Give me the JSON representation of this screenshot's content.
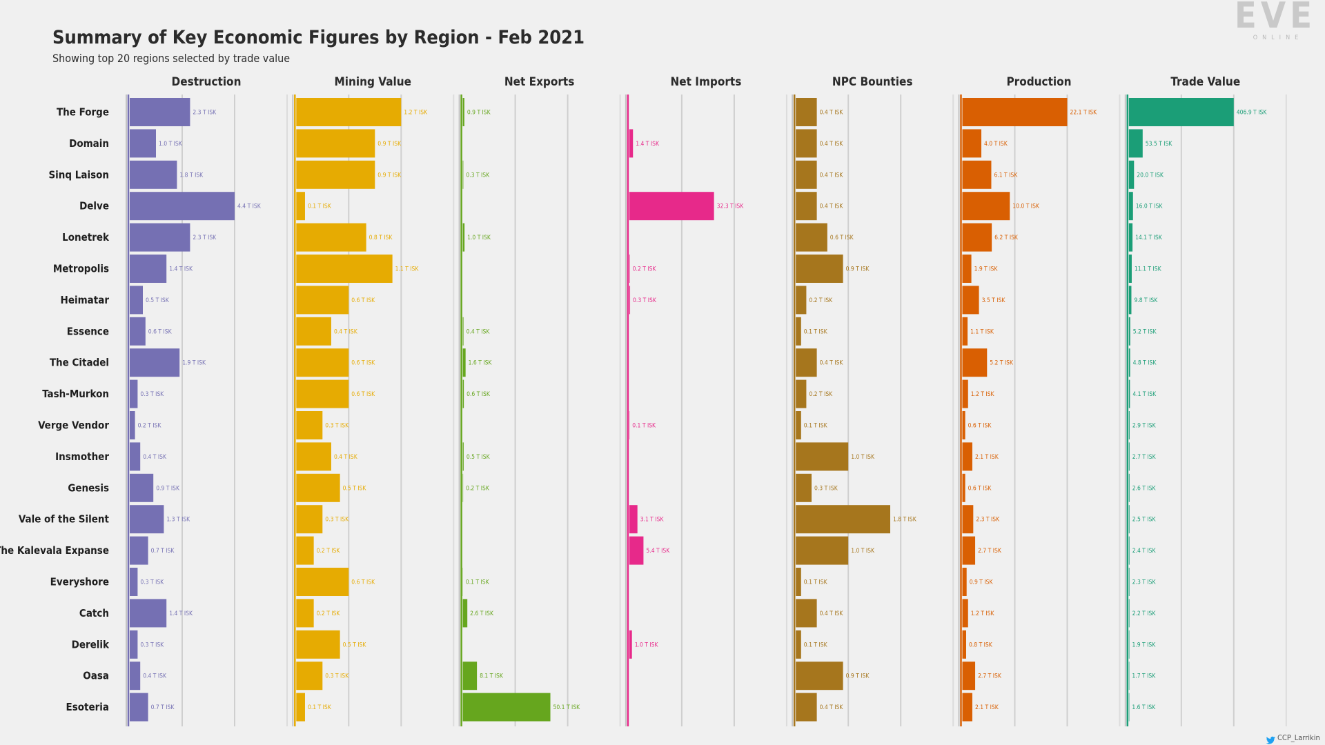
{
  "title": "Summary of Key Economic Figures by Region - Feb 2021",
  "subtitle": "Showing top 20 regions selected by trade value",
  "logo": {
    "main": "EVE",
    "sub": "ONLINE"
  },
  "credit": "CCP_Larrikin",
  "credit_icon": "twitter-bird-icon",
  "chart_data": {
    "type": "bar",
    "orientation": "horizontal",
    "unit": "T ISK",
    "title": "Summary of Key Economic Figures by Region - Feb 2021",
    "subtitle": "Showing top 20 regions selected by trade value",
    "categories": [
      "The Forge",
      "Domain",
      "Sinq Laison",
      "Delve",
      "Lonetrek",
      "Metropolis",
      "Heimatar",
      "Essence",
      "The Citadel",
      "Tash-Murkon",
      "Verge Vendor",
      "Insmother",
      "Genesis",
      "Vale of the Silent",
      "The Kalevala Expanse",
      "Everyshore",
      "Catch",
      "Derelik",
      "Oasa",
      "Esoteria"
    ],
    "series": [
      {
        "name": "Destruction",
        "color": "#7570b3",
        "max": 4.0,
        "values": [
          2.3,
          1.0,
          1.8,
          4.4,
          2.3,
          1.4,
          0.5,
          0.6,
          1.9,
          0.3,
          0.2,
          0.4,
          0.9,
          1.3,
          0.7,
          0.3,
          1.4,
          0.3,
          0.4,
          0.7
        ],
        "labels": [
          "2.3 T ISK",
          "1.0 T ISK",
          "1.8 T ISK",
          "4.4 T ISK",
          "2.3 T ISK",
          "1.4 T ISK",
          "0.5 T ISK",
          "0.6 T ISK",
          "1.9 T ISK",
          "0.3 T ISK",
          "0.2 T ISK",
          "0.4 T ISK",
          "0.9 T ISK",
          "1.3 T ISK",
          "0.7 T ISK",
          "0.3 T ISK",
          "1.4 T ISK",
          "0.3 T ISK",
          "0.4 T ISK",
          "0.7 T ISK"
        ]
      },
      {
        "name": "Mining Value",
        "color": "#e6ab02",
        "max": 1.2,
        "values": [
          1.2,
          0.9,
          0.9,
          0.1,
          0.8,
          1.1,
          0.6,
          0.4,
          0.6,
          0.6,
          0.3,
          0.4,
          0.5,
          0.3,
          0.2,
          0.6,
          0.2,
          0.5,
          0.3,
          0.1
        ],
        "labels": [
          "1.2 T ISK",
          "0.9 T ISK",
          "0.9 T ISK",
          "0.1 T ISK",
          "0.8 T ISK",
          "1.1 T ISK",
          "0.6 T ISK",
          "0.4 T ISK",
          "0.6 T ISK",
          "0.6 T ISK",
          "0.3 T ISK",
          "0.4 T ISK",
          "0.5 T ISK",
          "0.3 T ISK",
          "0.2 T ISK",
          "0.6 T ISK",
          "0.2 T ISK",
          "0.5 T ISK",
          "0.3 T ISK",
          "0.1 T ISK"
        ]
      },
      {
        "name": "Net Exports",
        "color": "#66a61e",
        "max": 60,
        "values": [
          0.9,
          0,
          0.3,
          0,
          1.0,
          0,
          0,
          0.4,
          1.6,
          0.6,
          0,
          0.5,
          0.2,
          0,
          0,
          0.1,
          2.6,
          0,
          8.1,
          50.1
        ],
        "labels": [
          "0.9 T ISK",
          "",
          "0.3 T ISK",
          "",
          "1.0 T ISK",
          "",
          "",
          "0.4 T ISK",
          "1.6 T ISK",
          "0.6 T ISK",
          "",
          "0.5 T ISK",
          "0.2 T ISK",
          "",
          "",
          "0.1 T ISK",
          "2.6 T ISK",
          "",
          "8.1 T ISK",
          "50.1 T ISK"
        ]
      },
      {
        "name": "Net Imports",
        "color": "#e7298a",
        "max": 40,
        "values": [
          0,
          1.4,
          0,
          32.3,
          0,
          0.2,
          0.3,
          0,
          0,
          0,
          0.1,
          0,
          0,
          3.1,
          5.4,
          0,
          0,
          1.0,
          0,
          0
        ],
        "labels": [
          "",
          "1.4 T ISK",
          "",
          "32.3 T ISK",
          "",
          "0.2 T ISK",
          "0.3 T ISK",
          "",
          "",
          "",
          "0.1 T ISK",
          "",
          "",
          "3.1 T ISK",
          "5.4 T ISK",
          "",
          "",
          "1.0 T ISK",
          "",
          ""
        ]
      },
      {
        "name": "NPC Bounties",
        "color": "#a6761d",
        "max": 2.0,
        "values": [
          0.4,
          0.4,
          0.4,
          0.4,
          0.6,
          0.9,
          0.2,
          0.1,
          0.4,
          0.2,
          0.1,
          1.0,
          0.3,
          1.8,
          1.0,
          0.1,
          0.4,
          0.1,
          0.9,
          0.4
        ],
        "labels": [
          "0.4 T ISK",
          "0.4 T ISK",
          "0.4 T ISK",
          "0.4 T ISK",
          "0.6 T ISK",
          "0.9 T ISK",
          "0.2 T ISK",
          "0.1 T ISK",
          "0.4 T ISK",
          "0.2 T ISK",
          "0.1 T ISK",
          "1.0 T ISK",
          "0.3 T ISK",
          "1.8 T ISK",
          "1.0 T ISK",
          "0.1 T ISK",
          "0.4 T ISK",
          "0.1 T ISK",
          "0.9 T ISK",
          "0.4 T ISK"
        ]
      },
      {
        "name": "Production",
        "color": "#d95f02",
        "max": 22.1,
        "values": [
          22.1,
          4.0,
          6.1,
          10.0,
          6.2,
          1.9,
          3.5,
          1.1,
          5.2,
          1.2,
          0.6,
          2.1,
          0.6,
          2.3,
          2.7,
          0.9,
          1.2,
          0.8,
          2.7,
          2.1
        ],
        "labels": [
          "22.1 T ISK",
          "4.0 T ISK",
          "6.1 T ISK",
          "10.0 T ISK",
          "6.2 T ISK",
          "1.9 T ISK",
          "3.5 T ISK",
          "1.1 T ISK",
          "5.2 T ISK",
          "1.2 T ISK",
          "0.6 T ISK",
          "2.1 T ISK",
          "0.6 T ISK",
          "2.3 T ISK",
          "2.7 T ISK",
          "0.9 T ISK",
          "1.2 T ISK",
          "0.8 T ISK",
          "2.7 T ISK",
          "2.1 T ISK"
        ]
      },
      {
        "name": "Trade Value",
        "color": "#1b9e77",
        "max": 406.9,
        "values": [
          406.9,
          53.5,
          20.0,
          16.0,
          14.1,
          11.1,
          9.8,
          5.2,
          4.8,
          4.1,
          2.9,
          2.7,
          2.6,
          2.5,
          2.4,
          2.3,
          2.2,
          1.9,
          1.7,
          1.6
        ],
        "labels": [
          "406.9 T ISK",
          "53.5 T ISK",
          "20.0 T ISK",
          "16.0 T ISK",
          "14.1 T ISK",
          "11.1 T ISK",
          "9.8 T ISK",
          "5.2 T ISK",
          "4.8 T ISK",
          "4.1 T ISK",
          "2.9 T ISK",
          "2.7 T ISK",
          "2.6 T ISK",
          "2.5 T ISK",
          "2.4 T ISK",
          "2.3 T ISK",
          "2.2 T ISK",
          "1.9 T ISK",
          "1.7 T ISK",
          "1.6 T ISK"
        ]
      }
    ]
  }
}
